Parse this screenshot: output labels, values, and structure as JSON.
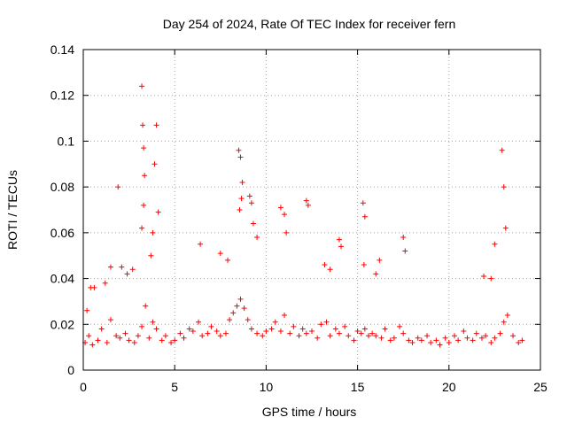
{
  "chart_data": {
    "type": "scatter",
    "title": "Day 254 of 2024, Rate Of TEC Index for receiver fern",
    "xlabel": "GPS time / hours",
    "ylabel": "ROTI / TECUs",
    "xlim": [
      0,
      25
    ],
    "ylim": [
      0,
      0.14
    ],
    "xticks": [
      0,
      5,
      10,
      15,
      20,
      25
    ],
    "xtick_labels": [
      "0",
      "5",
      "10",
      "15",
      "20",
      "25"
    ],
    "yticks": [
      0,
      0.02,
      0.04,
      0.06,
      0.08,
      0.1,
      0.12,
      0.14
    ],
    "ytick_labels": [
      "0",
      "0.02",
      "0.04",
      "0.06",
      "0.08",
      "0.1",
      "0.12",
      "0.14"
    ],
    "grid": true,
    "marker": "+",
    "color": "#ff0000",
    "series": [
      {
        "name": "ROTI",
        "x": [
          0.1,
          0.3,
          0.5,
          0.8,
          1.0,
          1.3,
          1.5,
          1.8,
          2.0,
          2.3,
          2.5,
          2.8,
          3.0,
          3.2,
          3.4,
          3.6,
          3.8,
          4.0,
          4.3,
          4.5,
          4.8,
          5.0,
          5.3,
          5.5,
          5.8,
          6.0,
          6.3,
          6.5,
          6.8,
          7.0,
          7.3,
          7.5,
          7.8,
          8.0,
          8.2,
          8.4,
          8.6,
          8.8,
          9.0,
          9.2,
          9.5,
          9.8,
          10.0,
          10.3,
          10.5,
          10.8,
          11.0,
          11.3,
          11.5,
          11.8,
          12.0,
          12.2,
          12.5,
          12.8,
          13.0,
          13.3,
          13.5,
          13.8,
          14.0,
          14.3,
          14.5,
          14.8,
          15.0,
          15.2,
          15.4,
          15.6,
          15.8,
          16.0,
          16.3,
          16.5,
          16.8,
          17.0,
          17.3,
          17.5,
          17.8,
          18.0,
          18.3,
          18.5,
          18.8,
          19.0,
          19.3,
          19.5,
          19.8,
          20.0,
          20.3,
          20.5,
          20.8,
          21.0,
          21.3,
          21.5,
          21.8,
          22.0,
          22.3,
          22.5,
          22.8,
          23.0,
          23.2,
          23.5,
          23.8,
          24.0,
          0.2,
          0.6,
          1.2,
          1.9,
          2.1,
          3.2,
          3.25,
          3.3,
          3.35,
          3.3,
          3.2,
          3.9,
          4.0,
          4.1,
          3.8,
          3.7,
          6.4,
          8.5,
          8.6,
          8.7,
          8.65,
          8.55,
          9.1,
          9.2,
          9.3,
          9.5,
          10.8,
          11.0,
          11.1,
          12.2,
          12.3,
          14.0,
          14.1,
          15.3,
          15.4,
          15.35,
          17.5,
          17.6,
          22.9,
          23.0,
          23.1,
          22.5,
          22.3,
          21.9,
          16.2,
          16.0,
          13.2,
          13.5,
          7.5,
          7.9,
          2.4,
          2.7,
          0.4,
          1.5
        ],
        "y": [
          0.012,
          0.015,
          0.011,
          0.013,
          0.018,
          0.012,
          0.022,
          0.015,
          0.014,
          0.016,
          0.013,
          0.012,
          0.015,
          0.019,
          0.028,
          0.014,
          0.021,
          0.018,
          0.013,
          0.015,
          0.012,
          0.013,
          0.016,
          0.014,
          0.018,
          0.017,
          0.021,
          0.015,
          0.016,
          0.019,
          0.017,
          0.015,
          0.016,
          0.022,
          0.025,
          0.028,
          0.031,
          0.027,
          0.022,
          0.018,
          0.016,
          0.015,
          0.017,
          0.018,
          0.021,
          0.017,
          0.024,
          0.016,
          0.019,
          0.015,
          0.018,
          0.016,
          0.017,
          0.014,
          0.02,
          0.021,
          0.015,
          0.018,
          0.016,
          0.019,
          0.015,
          0.013,
          0.017,
          0.016,
          0.018,
          0.015,
          0.016,
          0.015,
          0.014,
          0.018,
          0.013,
          0.014,
          0.019,
          0.016,
          0.013,
          0.012,
          0.014,
          0.013,
          0.015,
          0.012,
          0.013,
          0.011,
          0.014,
          0.012,
          0.015,
          0.013,
          0.017,
          0.014,
          0.013,
          0.016,
          0.014,
          0.015,
          0.012,
          0.014,
          0.016,
          0.021,
          0.024,
          0.015,
          0.012,
          0.013,
          0.026,
          0.036,
          0.038,
          0.08,
          0.045,
          0.124,
          0.107,
          0.097,
          0.085,
          0.072,
          0.062,
          0.09,
          0.107,
          0.069,
          0.06,
          0.05,
          0.055,
          0.096,
          0.093,
          0.082,
          0.075,
          0.07,
          0.076,
          0.073,
          0.064,
          0.058,
          0.071,
          0.068,
          0.06,
          0.074,
          0.072,
          0.057,
          0.054,
          0.073,
          0.067,
          0.046,
          0.058,
          0.052,
          0.096,
          0.08,
          0.062,
          0.055,
          0.04,
          0.041,
          0.048,
          0.042,
          0.046,
          0.044,
          0.051,
          0.048,
          0.042,
          0.044,
          0.036,
          0.045
        ]
      }
    ]
  }
}
